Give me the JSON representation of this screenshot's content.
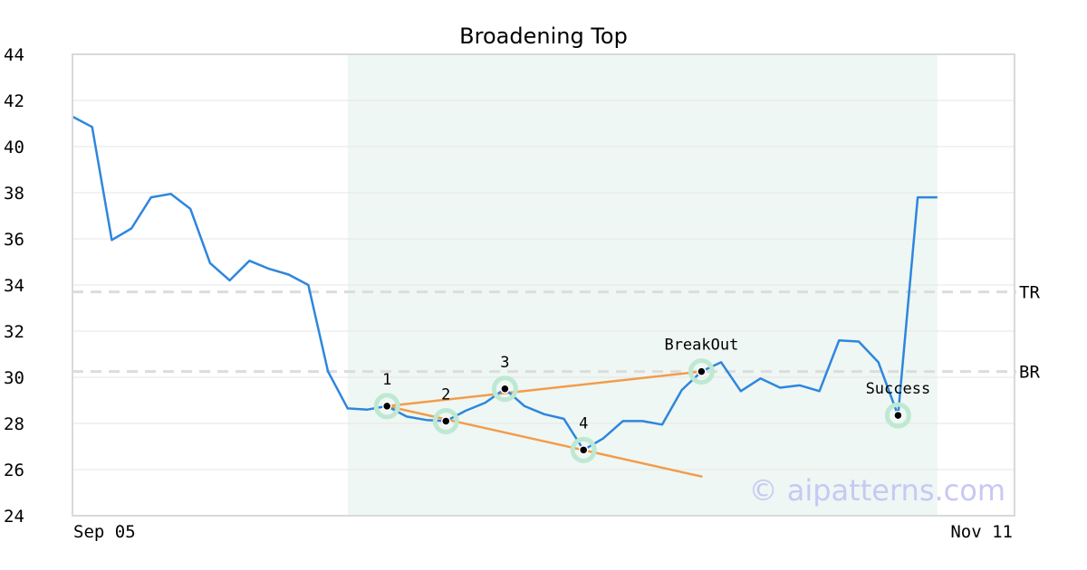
{
  "chart_data": {
    "type": "line",
    "title": "Broadening Top",
    "x_tick_labels": [
      "Sep 05",
      "Nov 11"
    ],
    "ylim": [
      24,
      44
    ],
    "y_ticks": [
      24,
      26,
      28,
      30,
      32,
      34,
      36,
      38,
      40,
      42,
      44
    ],
    "grid": "horizontal",
    "series": [
      {
        "color": "#2e86de",
        "values": [
          41.3,
          40.85,
          35.95,
          36.45,
          37.8,
          37.95,
          37.3,
          34.95,
          34.2,
          35.05,
          34.7,
          34.45,
          34.0,
          30.25,
          28.65,
          28.6,
          28.75,
          28.3,
          28.15,
          28.1,
          28.55,
          28.9,
          29.5,
          28.75,
          28.4,
          28.2,
          26.85,
          27.35,
          28.1,
          28.1,
          27.95,
          29.45,
          30.25,
          30.65,
          29.4,
          29.95,
          29.55,
          29.65,
          29.4,
          31.6,
          31.55,
          30.65,
          28.35,
          37.8,
          37.8
        ]
      }
    ],
    "shaded_region": {
      "from_index": 14,
      "to_index": 44,
      "color": "#eef7f3"
    },
    "pattern_points": [
      {
        "label": "1",
        "index": 16,
        "value": 28.75
      },
      {
        "label": "2",
        "index": 19,
        "value": 28.1
      },
      {
        "label": "3",
        "index": 22,
        "value": 29.5
      },
      {
        "label": "4",
        "index": 26,
        "value": 26.85
      },
      {
        "label": "BreakOut",
        "index": 32,
        "value": 30.25
      },
      {
        "label": "Success",
        "index": 42,
        "value": 28.35
      }
    ],
    "trend_lines": [
      {
        "from": {
          "index": 16,
          "value": 28.75
        },
        "to": {
          "index": 32,
          "value": 30.25
        },
        "color": "#f39c4a"
      },
      {
        "from": {
          "index": 16,
          "value": 28.75
        },
        "to": {
          "index": 32,
          "value": 25.7
        },
        "color": "#f39c4a"
      }
    ],
    "levels": [
      {
        "label": "TR",
        "value": 33.7
      },
      {
        "label": "BR",
        "value": 30.25
      }
    ],
    "watermark": "© aipatterns.com"
  }
}
